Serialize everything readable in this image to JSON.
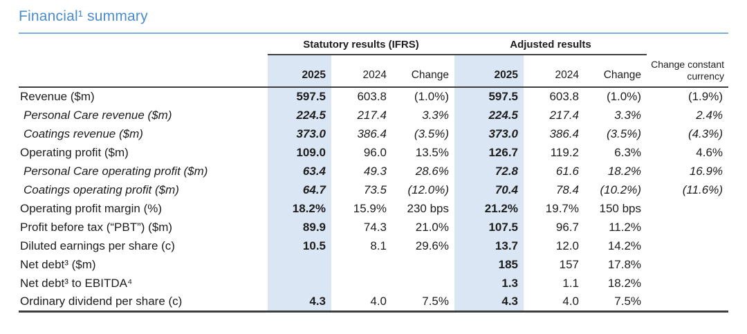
{
  "title": "Financial¹ summary",
  "colors": {
    "accent": "#4a8ccd",
    "highlight": "#dae6f3",
    "rule_blue": "#7aaede",
    "rule_dark": "#3d3d3d",
    "text": "#1c1c1c"
  },
  "table": {
    "groups": [
      {
        "label": "Statutory results (IFRS)"
      },
      {
        "label": "Adjusted results"
      }
    ],
    "columns": [
      "2025",
      "2024",
      "Change",
      "2025",
      "2024",
      "Change",
      "Change constant currency"
    ],
    "rows": [
      {
        "label": "Revenue ($m)",
        "values": [
          "597.5",
          "603.8",
          "(1.0%)",
          "597.5",
          "603.8",
          "(1.0%)",
          "(1.9%)"
        ]
      },
      {
        "label": "Personal Care revenue ($m)",
        "values": [
          "224.5",
          "217.4",
          "3.3%",
          "224.5",
          "217.4",
          "3.3%",
          "2.4%"
        ]
      },
      {
        "label": "Coatings revenue ($m)",
        "values": [
          "373.0",
          "386.4",
          "(3.5%)",
          "373.0",
          "386.4",
          "(3.5%)",
          "(4.3%)"
        ]
      },
      {
        "label": "Operating profit ($m)",
        "values": [
          "109.0",
          "96.0",
          "13.5%",
          "126.7",
          "119.2",
          "6.3%",
          "4.6%"
        ]
      },
      {
        "label": "Personal Care operating profit ($m)",
        "values": [
          "63.4",
          "49.3",
          "28.6%",
          "72.8",
          "61.6",
          "18.2%",
          "16.9%"
        ]
      },
      {
        "label": "Coatings operating profit ($m)",
        "values": [
          "64.7",
          "73.5",
          "(12.0%)",
          "70.4",
          "78.4",
          "(10.2%)",
          "(11.6%)"
        ]
      },
      {
        "label": "Operating profit margin (%)",
        "values": [
          "18.2%",
          "15.9%",
          "230 bps",
          "21.2%",
          "19.7%",
          "150 bps",
          ""
        ]
      },
      {
        "label": "Profit before tax (“PBT”) ($m)",
        "values": [
          "89.9",
          "74.3",
          "21.0%",
          "107.5",
          "96.7",
          "11.2%",
          ""
        ]
      },
      {
        "label": "Diluted earnings per share (c)",
        "values": [
          "10.5",
          "8.1",
          "29.6%",
          "13.7",
          "12.0",
          "14.2%",
          ""
        ]
      },
      {
        "label": "Net debt³ ($m)",
        "values": [
          "",
          "",
          "",
          "185",
          "157",
          "17.8%",
          ""
        ]
      },
      {
        "label": "Net debt³ to EBITDA⁴",
        "values": [
          "",
          "",
          "",
          "1.3",
          "1.1",
          "18.2%",
          ""
        ]
      },
      {
        "label": "Ordinary dividend per share (c)",
        "values": [
          "4.3",
          "4.0",
          "7.5%",
          "4.3",
          "4.0",
          "7.5%",
          ""
        ]
      }
    ]
  }
}
